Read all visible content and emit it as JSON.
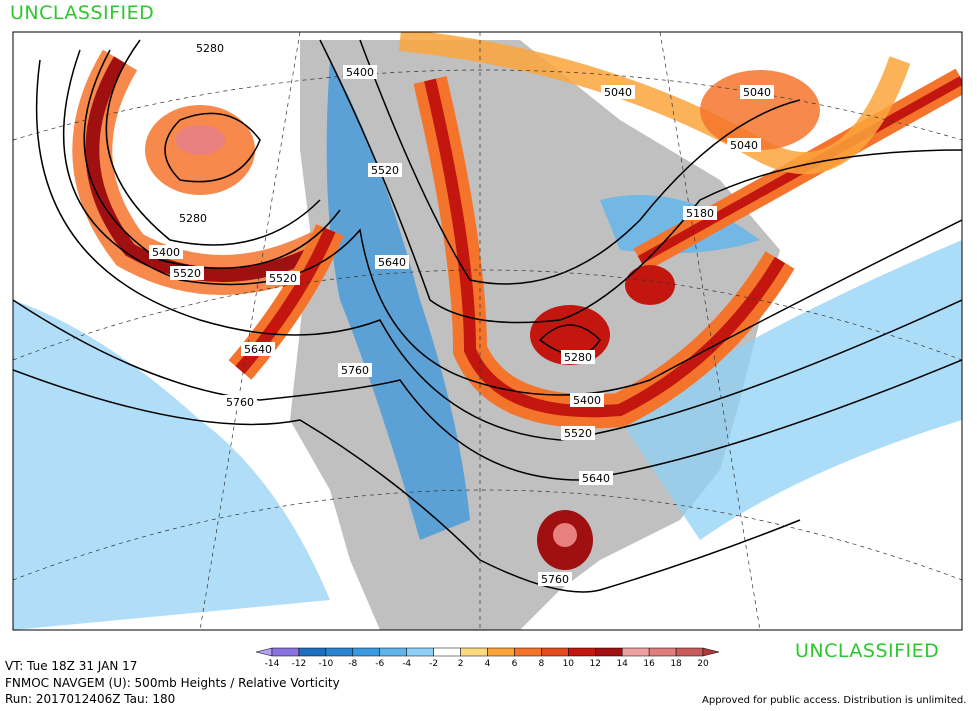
{
  "header": {
    "classification": "UNCLASSIFIED"
  },
  "contour_labels": [
    "5280",
    "5400",
    "5520",
    "5640",
    "5760",
    "5280",
    "5400",
    "5520",
    "5520",
    "5640",
    "5760",
    "5040",
    "5040",
    "5040",
    "5180",
    "5280",
    "5400",
    "5520",
    "5640",
    "5760"
  ],
  "legend": {
    "ticks": [
      -14,
      -12,
      -10,
      -8,
      -6,
      -4,
      -2,
      2,
      4,
      6,
      8,
      10,
      12,
      14,
      16,
      18,
      20
    ],
    "colors": [
      "#b49ef0",
      "#8874e0",
      "#1f6fc0",
      "#2a84d0",
      "#3a9ae0",
      "#5fb4ec",
      "#8dd0f7",
      "#ffffff",
      "#fcd880",
      "#fca43c",
      "#f4742c",
      "#e34a1e",
      "#c2160e",
      "#a01010",
      "#eca0a0",
      "#e07e7e",
      "#c85a5a",
      "#b03a3a"
    ]
  },
  "footer": {
    "classification": "UNCLASSIFIED",
    "valid_time": "VT: Tue 18Z 31 JAN 17",
    "model": "FNMOC NAVGEM (U): 500mb Heights / Relative Vorticity",
    "run": "Run: 2017012406Z Tau: 180",
    "approval": "Approved for public access. Distribution is unlimited."
  }
}
